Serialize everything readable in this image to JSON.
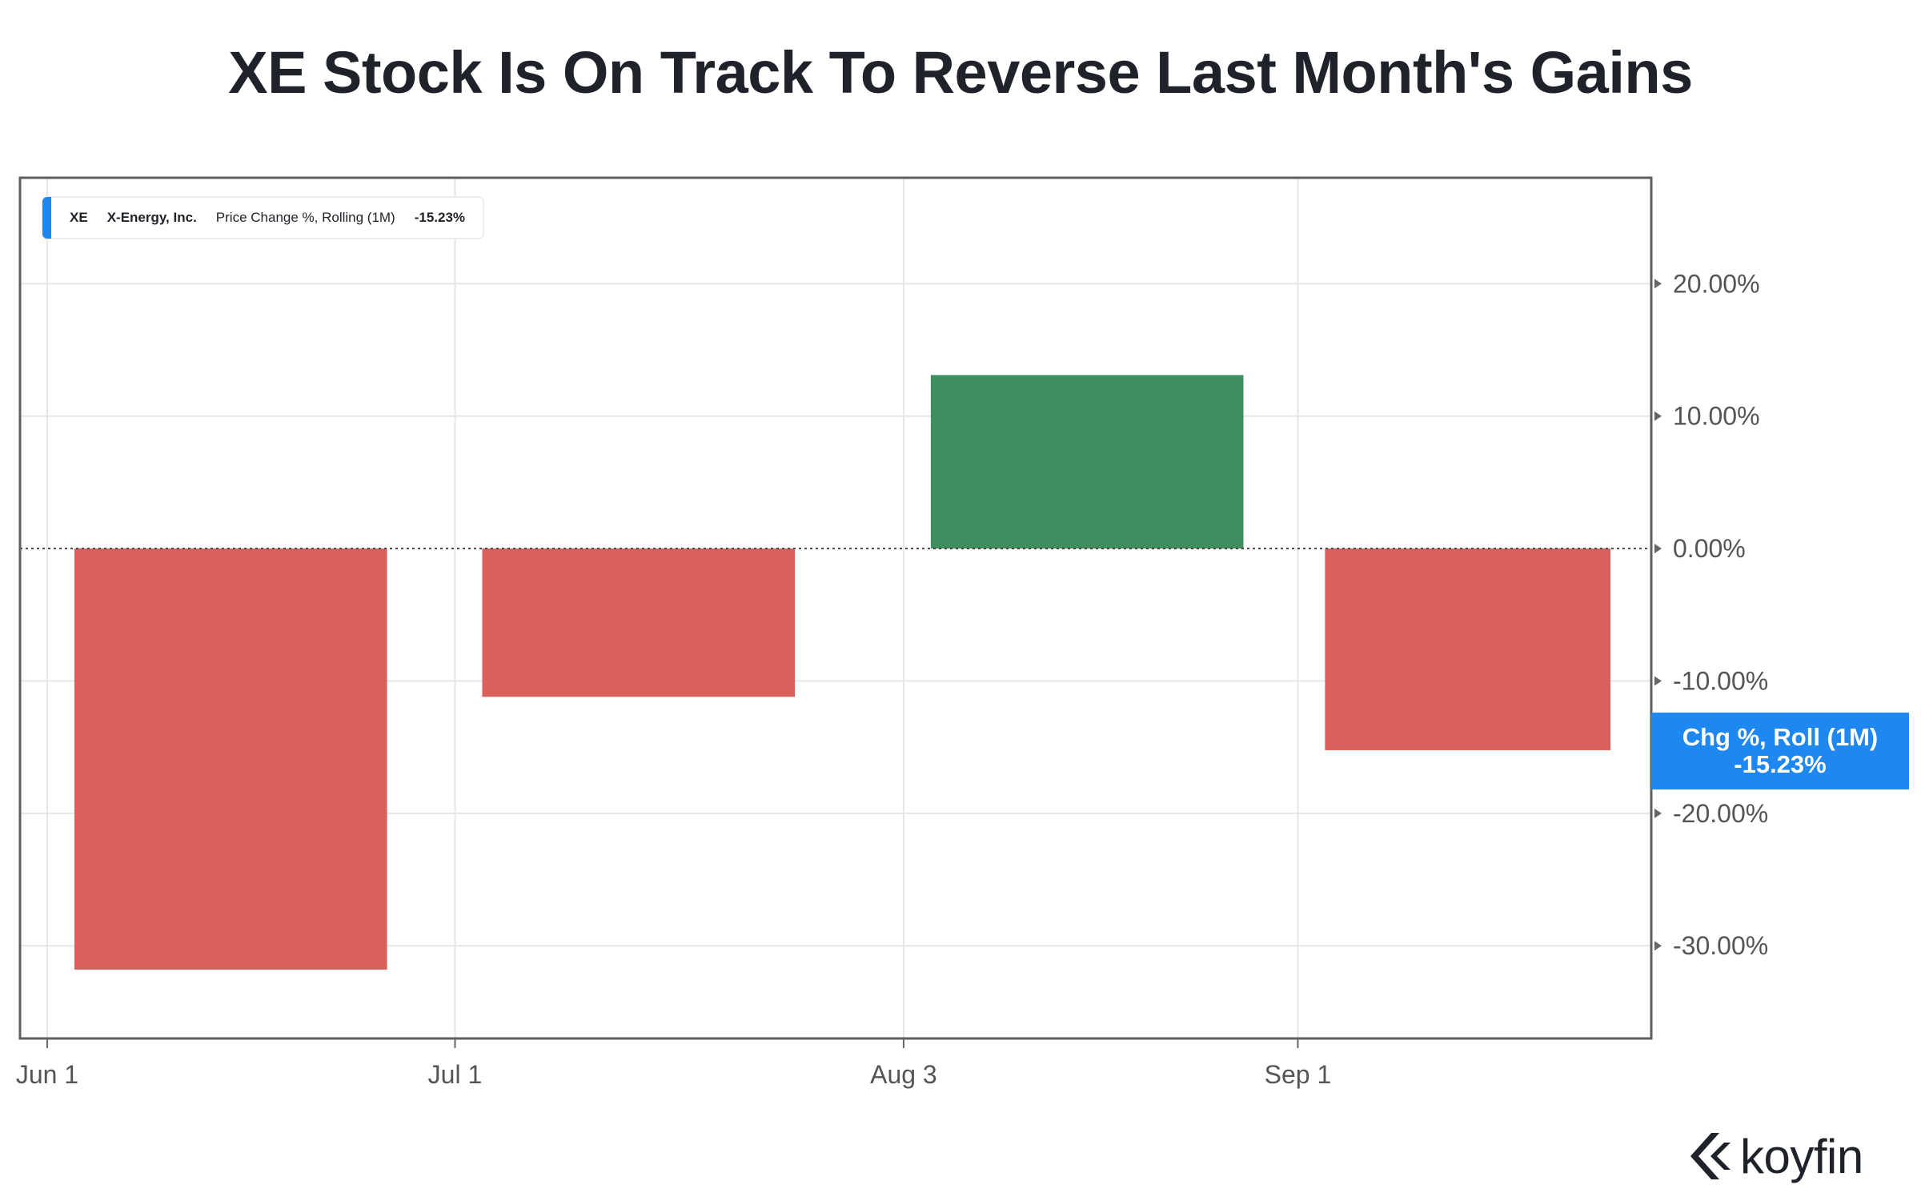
{
  "title": "XE Stock Is On Track To Reverse Last Month's Gains",
  "legend": {
    "ticker": "XE",
    "company": "X-Energy, Inc.",
    "metric": "Price Change %, Rolling (1M)",
    "value": "-15.23%"
  },
  "badge": {
    "line1": "Chg %, Roll (1M)",
    "line2": "-15.23%"
  },
  "brand": {
    "name": "koyfin",
    "logo_icon": "koyfin-chevron-logo-icon"
  },
  "colors": {
    "positive": "#3e8e60",
    "negative": "#d8615c",
    "accent": "#1e88f0",
    "grid": "#e6e6e6",
    "frame": "#5f5f5f",
    "tick_text": "#555555"
  },
  "chart_data": {
    "type": "bar",
    "x_ticks": [
      "Jun 1",
      "Jul 1",
      "Aug 3",
      "Sep 1"
    ],
    "y_ticks": [
      "20.00%",
      "10.00%",
      "0.00%",
      "-10.00%",
      "-20.00%",
      "-30.00%"
    ],
    "y_tick_values": [
      20,
      10,
      0,
      -10,
      -20,
      -30
    ],
    "ylim": [
      -37,
      28
    ],
    "series": [
      {
        "values": [
          -31.8,
          -11.2,
          13.1,
          -15.23
        ],
        "periods": [
          [
            "2024-06-03",
            "2024-06-26"
          ],
          [
            "2024-07-03",
            "2024-07-26"
          ],
          [
            "2024-08-05",
            "2024-08-28"
          ],
          [
            "2024-09-03",
            "2024-09-24"
          ]
        ]
      }
    ],
    "grid": true,
    "zero_line": "dotted",
    "legend_position": "top-left"
  }
}
